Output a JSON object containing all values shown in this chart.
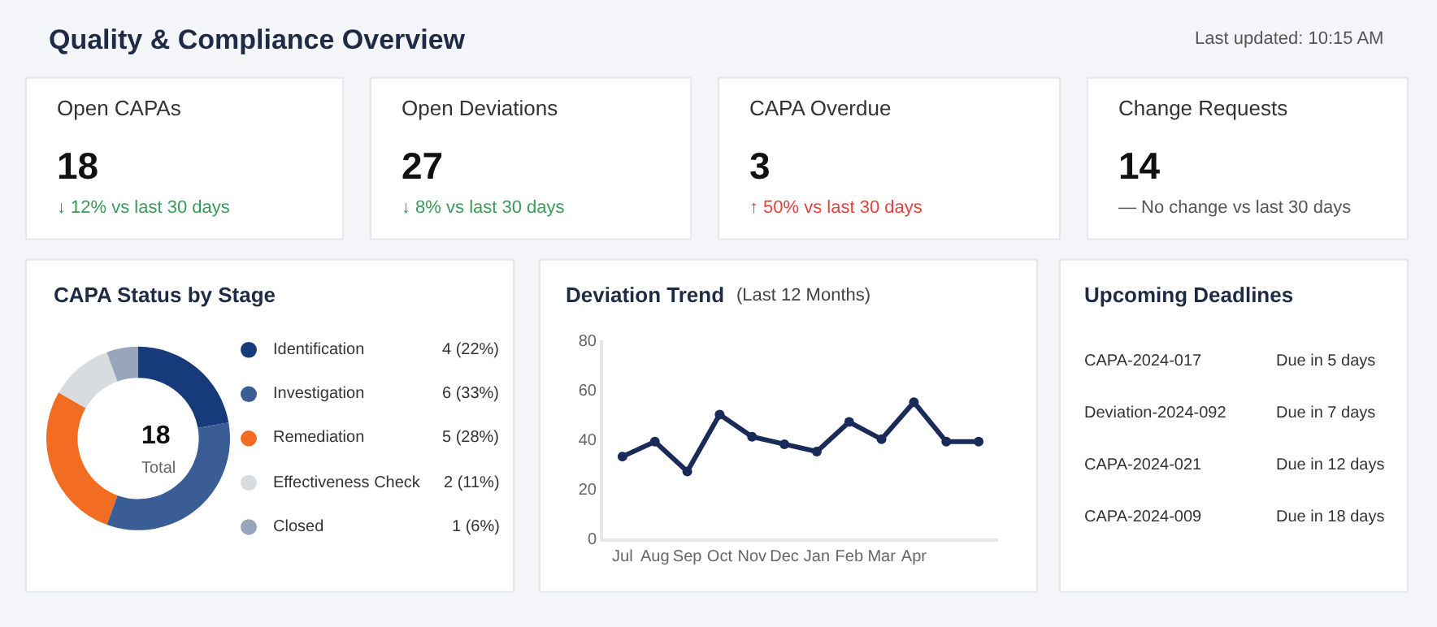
{
  "chart_data": [
    {
      "type": "other",
      "title": "Quality & Compliance Overview",
      "subtitle": "Last updated: 10:15 AM",
      "annotations": [
        "Open CAPAs",
        "18",
        "↓ 12% vs last 30 days",
        "Open Deviations",
        "27",
        "↓ 8% vs last 30 days",
        "CAPA Overdue",
        "3",
        "↑ 50% vs last 30 days",
        "Change Requests",
        "14",
        "— No change vs last 30 days"
      ]
    },
    {
      "type": "donut",
      "title": "CAPA Status by Stage",
      "categories": [
        "Identification",
        "Investigation",
        "Remediation",
        "Effectiveness Check",
        "Closed"
      ],
      "values": [
        4,
        6,
        5,
        2,
        1
      ],
      "value_labels": [
        "4 (22%)",
        "6 (33%)",
        "5 (28%)",
        "2 (11%)",
        "1 (6%)"
      ],
      "colors": [
        "#173b7a",
        "#3a5d95",
        "#f26d21",
        "#d9dcdf",
        "#97a6bb"
      ],
      "annotations": [
        "18",
        "Total"
      ],
      "legend": "right"
    },
    {
      "type": "line",
      "title": "Deviation Trend",
      "subtitle": "(Last 12 Months)",
      "categories": [
        "Jul",
        "Aug",
        "Sep",
        "Oct",
        "Nov",
        "Dec",
        "Jan",
        "Feb",
        "Mar",
        "Apr",
        null,
        null
      ],
      "series": [
        {
          "color": "#1a2b5a",
          "values": [
            33,
            39,
            27,
            50,
            41,
            38,
            35,
            47,
            40,
            55,
            39,
            39
          ]
        }
      ],
      "ylim": [
        0,
        80
      ],
      "yticks": [
        0,
        20,
        40,
        60,
        80
      ],
      "marker": "circle",
      "line_style": "solid"
    },
    {
      "type": "other",
      "title": "Upcoming Deadlines",
      "categories": [
        "CAPA-2024-017",
        "Deviation-2024-092",
        "CAPA-2024-021",
        "CAPA-2024-009"
      ],
      "annotations": [
        "Due in 5 days",
        "Due in 7 days",
        "Due in 12 days",
        "Due in 18 days"
      ]
    }
  ]
}
